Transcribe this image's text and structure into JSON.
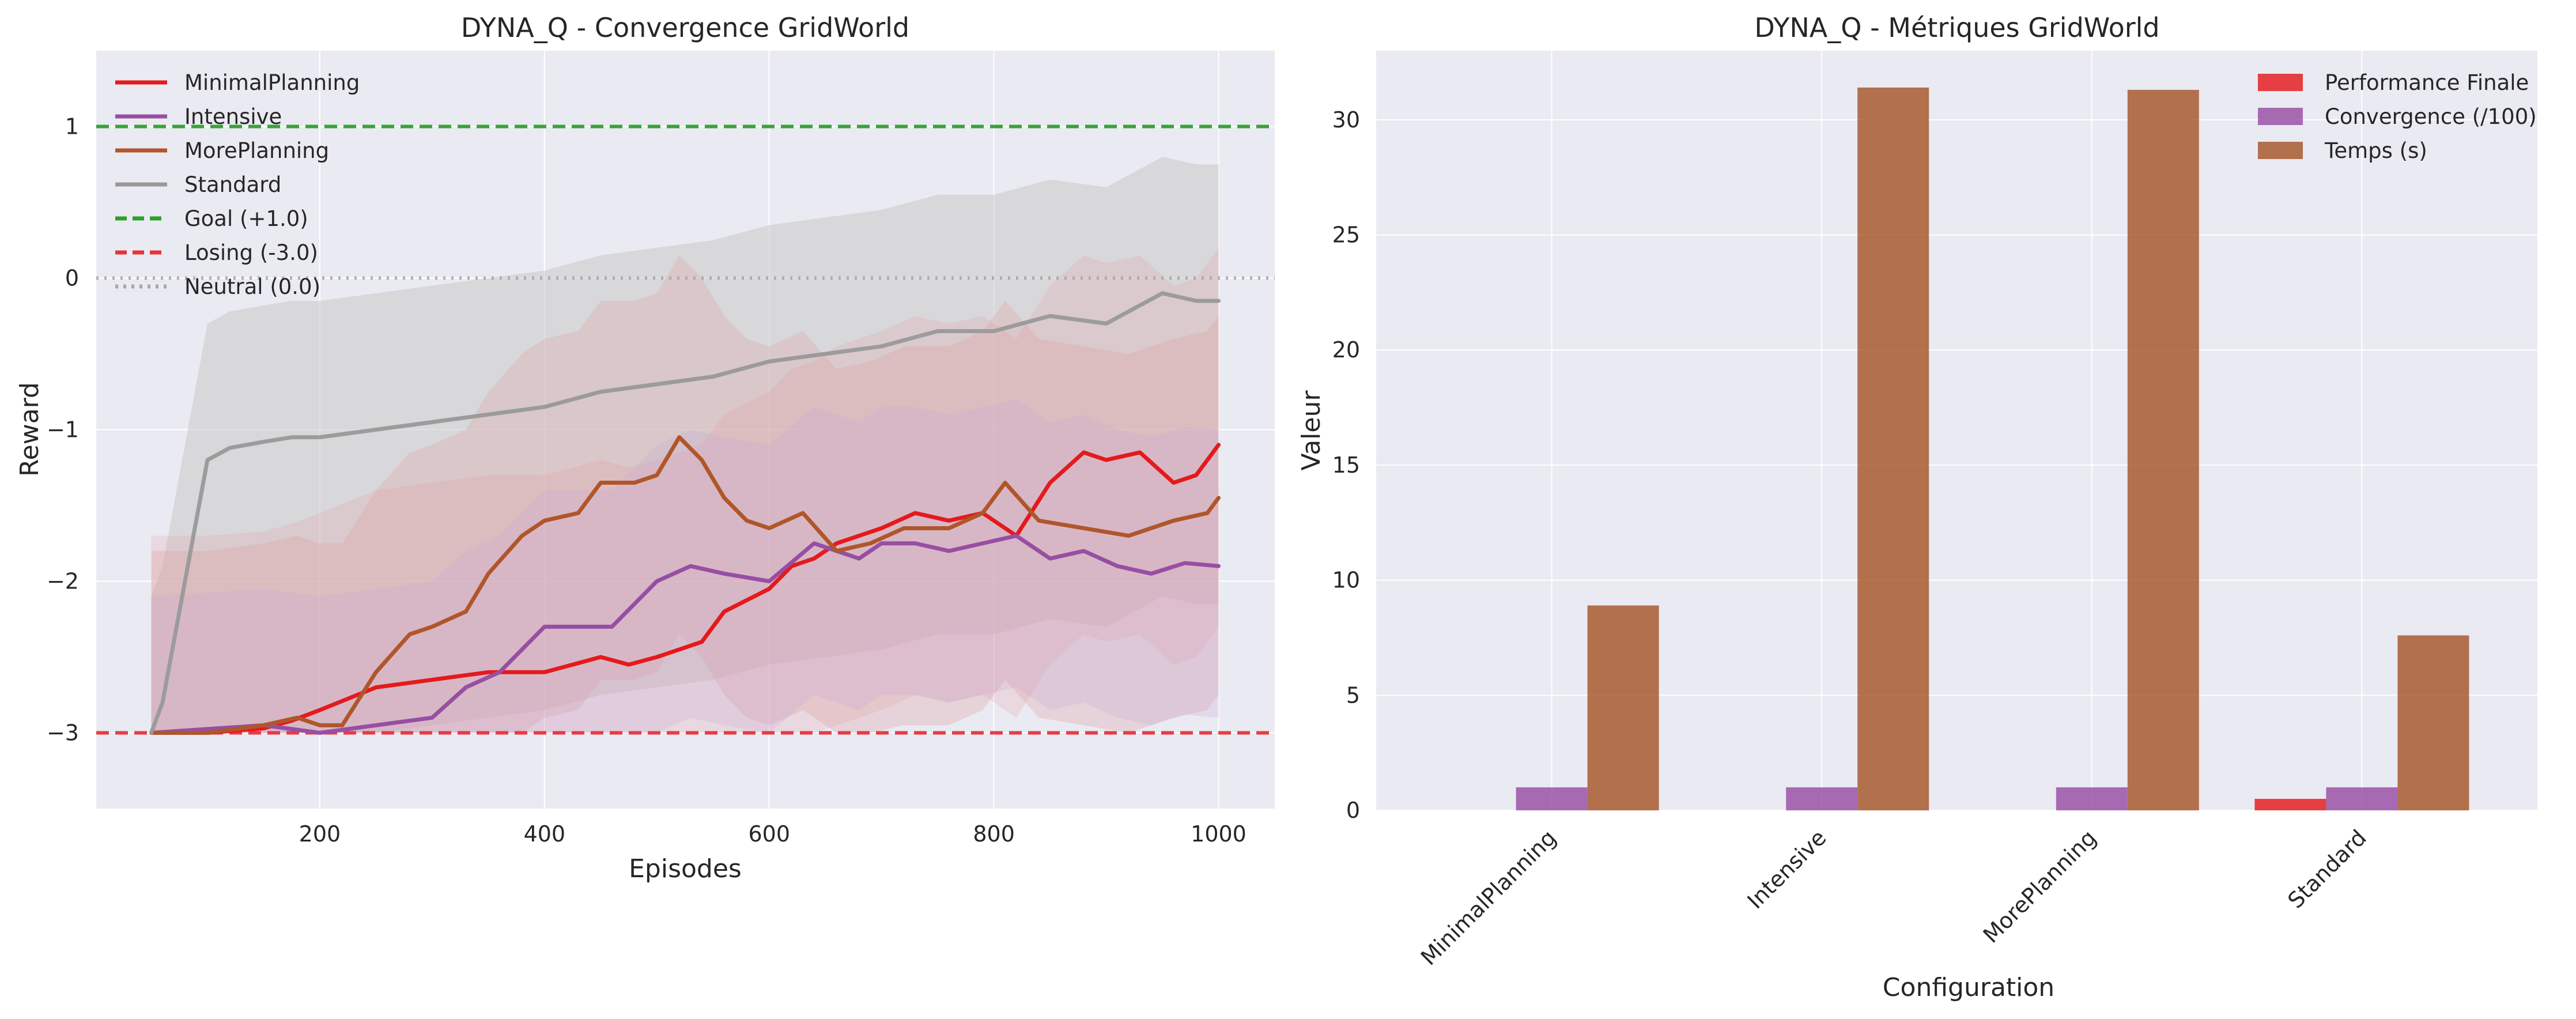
{
  "chart_data": [
    {
      "type": "line",
      "title": "DYNA_Q - Convergence GridWorld",
      "xlabel": "Episodes",
      "ylabel": "Reward",
      "xlim": [
        1,
        1050
      ],
      "ylim": [
        -3.5,
        1.5
      ],
      "x_ticks": [
        200,
        400,
        600,
        800,
        1000
      ],
      "y_ticks": [
        1,
        0,
        -1,
        -2,
        -3
      ],
      "y_tick_labels": [
        "1",
        "0",
        "−1",
        "−2",
        "−3"
      ],
      "grid": true,
      "legend_position": "upper left",
      "series": [
        {
          "name": "MinimalPlanning",
          "color": "#e41a1c",
          "x": [
            50,
            100,
            150,
            175,
            200,
            250,
            300,
            350,
            400,
            450,
            475,
            500,
            540,
            560,
            600,
            620,
            640,
            660,
            680,
            700,
            730,
            760,
            790,
            820,
            850,
            880,
            900,
            930,
            960,
            980,
            1000
          ],
          "values": [
            -3.0,
            -3.0,
            -2.97,
            -2.92,
            -2.85,
            -2.7,
            -2.65,
            -2.6,
            -2.6,
            -2.5,
            -2.55,
            -2.5,
            -2.4,
            -2.2,
            -2.05,
            -1.9,
            -1.85,
            -1.75,
            -1.7,
            -1.65,
            -1.55,
            -1.6,
            -1.55,
            -1.7,
            -1.35,
            -1.15,
            -1.2,
            -1.15,
            -1.35,
            -1.3,
            -1.1
          ]
        },
        {
          "name": "Intensive",
          "color": "#984ea3",
          "x": [
            50,
            150,
            200,
            250,
            300,
            330,
            360,
            400,
            430,
            460,
            500,
            530,
            560,
            600,
            640,
            680,
            700,
            730,
            760,
            790,
            820,
            850,
            880,
            910,
            940,
            970,
            1000
          ],
          "values": [
            -3.0,
            -2.95,
            -3.0,
            -2.95,
            -2.9,
            -2.7,
            -2.6,
            -2.3,
            -2.3,
            -2.3,
            -2.0,
            -1.9,
            -1.95,
            -2.0,
            -1.75,
            -1.85,
            -1.75,
            -1.75,
            -1.8,
            -1.75,
            -1.7,
            -1.85,
            -1.8,
            -1.9,
            -1.95,
            -1.88,
            -1.9
          ]
        },
        {
          "name": "MorePlanning",
          "color": "#b0562a",
          "x": [
            50,
            100,
            150,
            180,
            200,
            220,
            250,
            280,
            300,
            330,
            350,
            380,
            400,
            430,
            450,
            480,
            500,
            520,
            540,
            560,
            580,
            600,
            630,
            660,
            690,
            720,
            760,
            790,
            810,
            840,
            880,
            920,
            960,
            990,
            1000
          ],
          "values": [
            -3.0,
            -3.0,
            -2.95,
            -2.9,
            -2.95,
            -2.95,
            -2.6,
            -2.35,
            -2.3,
            -2.2,
            -1.95,
            -1.7,
            -1.6,
            -1.55,
            -1.35,
            -1.35,
            -1.3,
            -1.05,
            -1.2,
            -1.45,
            -1.6,
            -1.65,
            -1.55,
            -1.8,
            -1.75,
            -1.65,
            -1.65,
            -1.55,
            -1.35,
            -1.6,
            -1.65,
            -1.7,
            -1.6,
            -1.55,
            -1.45
          ]
        },
        {
          "name": "Standard",
          "color": "#999999",
          "x": [
            50,
            60,
            80,
            100,
            120,
            150,
            175,
            200,
            250,
            300,
            350,
            400,
            450,
            500,
            550,
            600,
            650,
            700,
            750,
            800,
            850,
            900,
            950,
            980,
            1000
          ],
          "values": [
            -3.0,
            -2.8,
            -2.0,
            -1.2,
            -1.12,
            -1.08,
            -1.05,
            -1.05,
            -1.0,
            -0.95,
            -0.9,
            -0.85,
            -0.75,
            -0.7,
            -0.65,
            -0.55,
            -0.5,
            -0.45,
            -0.35,
            -0.35,
            -0.25,
            -0.3,
            -0.1,
            -0.15,
            -0.15
          ]
        }
      ],
      "reference_lines": [
        {
          "name": "Goal (+1.0)",
          "y": 1.0,
          "color": "#2ca02c",
          "style": "dashed"
        },
        {
          "name": "Losing (-3.0)",
          "y": -3.0,
          "color": "#e8323c",
          "style": "dashed"
        },
        {
          "name": "Neutral (0.0)",
          "y": 0.0,
          "color": "#a8a8a8",
          "style": "dotted"
        }
      ]
    },
    {
      "type": "bar",
      "title": "DYNA_Q - Métriques GridWorld",
      "xlabel": "Configuration",
      "ylabel": "Valeur",
      "categories": [
        "MinimalPlanning",
        "Intensive",
        "MorePlanning",
        "Standard"
      ],
      "ylim": [
        0,
        33
      ],
      "y_ticks": [
        0,
        5,
        10,
        15,
        20,
        25,
        30
      ],
      "grid": true,
      "legend_position": "upper right",
      "series": [
        {
          "name": "Performance Finale",
          "color": "#e41a1c",
          "values": [
            0.0,
            0.0,
            0.0,
            0.5
          ]
        },
        {
          "name": "Convergence (/100)",
          "color": "#984ea3",
          "values": [
            1.0,
            1.0,
            1.0,
            1.0
          ]
        },
        {
          "name": "Temps (s)",
          "color": "#a65628",
          "values": [
            8.9,
            31.4,
            31.3,
            7.6
          ]
        }
      ]
    }
  ]
}
